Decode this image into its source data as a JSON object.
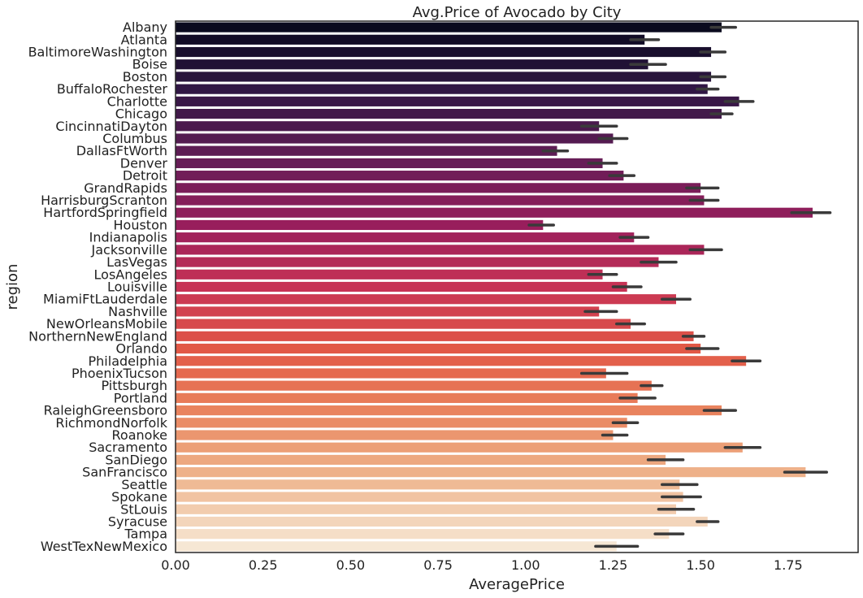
{
  "chart_data": {
    "type": "bar",
    "orientation": "horizontal",
    "title": "Avg.Price of Avocado by City",
    "xlabel": "AveragePrice",
    "ylabel": "region",
    "xlim": [
      0,
      1.95
    ],
    "x_ticks": [
      "0.00",
      "0.25",
      "0.50",
      "0.75",
      "1.00",
      "1.25",
      "1.50",
      "1.75"
    ],
    "x_tick_values": [
      0,
      0.25,
      0.5,
      0.75,
      1.0,
      1.25,
      1.5,
      1.75
    ],
    "grid": false,
    "palette": "rocket",
    "colors": [
      "#0a0a1e",
      "#f6e7d4"
    ],
    "error_bar_color": "#3a3a3a",
    "categories": [
      "Albany",
      "Atlanta",
      "BaltimoreWashington",
      "Boise",
      "Boston",
      "BuffaloRochester",
      "Charlotte",
      "Chicago",
      "CincinnatiDayton",
      "Columbus",
      "DallasFtWorth",
      "Denver",
      "Detroit",
      "GrandRapids",
      "HarrisburgScranton",
      "HartfordSpringfield",
      "Houston",
      "Indianapolis",
      "Jacksonville",
      "LasVegas",
      "LosAngeles",
      "Louisville",
      "MiamiFtLauderdale",
      "Nashville",
      "NewOrleansMobile",
      "NorthernNewEngland",
      "Orlando",
      "Philadelphia",
      "PhoenixTucson",
      "Pittsburgh",
      "Portland",
      "RaleighGreensboro",
      "RichmondNorfolk",
      "Roanoke",
      "Sacramento",
      "SanDiego",
      "SanFrancisco",
      "Seattle",
      "Spokane",
      "StLouis",
      "Syracuse",
      "Tampa",
      "WestTexNewMexico"
    ],
    "values": [
      1.56,
      1.34,
      1.53,
      1.35,
      1.53,
      1.52,
      1.61,
      1.56,
      1.21,
      1.25,
      1.09,
      1.22,
      1.28,
      1.5,
      1.51,
      1.82,
      1.05,
      1.31,
      1.51,
      1.38,
      1.22,
      1.29,
      1.43,
      1.21,
      1.3,
      1.48,
      1.5,
      1.63,
      1.23,
      1.36,
      1.32,
      1.56,
      1.29,
      1.25,
      1.62,
      1.4,
      1.8,
      1.44,
      1.45,
      1.43,
      1.52,
      1.41,
      1.26
    ],
    "ci_low": [
      1.53,
      1.3,
      1.5,
      1.3,
      1.5,
      1.49,
      1.57,
      1.53,
      1.16,
      1.21,
      1.05,
      1.18,
      1.24,
      1.46,
      1.47,
      1.76,
      1.01,
      1.27,
      1.47,
      1.33,
      1.18,
      1.25,
      1.39,
      1.17,
      1.26,
      1.45,
      1.46,
      1.59,
      1.16,
      1.33,
      1.27,
      1.51,
      1.25,
      1.22,
      1.57,
      1.35,
      1.74,
      1.39,
      1.39,
      1.38,
      1.49,
      1.37,
      1.2
    ],
    "ci_high": [
      1.6,
      1.38,
      1.57,
      1.4,
      1.57,
      1.55,
      1.65,
      1.59,
      1.26,
      1.29,
      1.12,
      1.26,
      1.31,
      1.55,
      1.55,
      1.87,
      1.08,
      1.35,
      1.56,
      1.43,
      1.26,
      1.33,
      1.47,
      1.26,
      1.34,
      1.51,
      1.55,
      1.67,
      1.29,
      1.39,
      1.37,
      1.6,
      1.32,
      1.29,
      1.67,
      1.45,
      1.86,
      1.49,
      1.5,
      1.48,
      1.55,
      1.45,
      1.32
    ]
  }
}
